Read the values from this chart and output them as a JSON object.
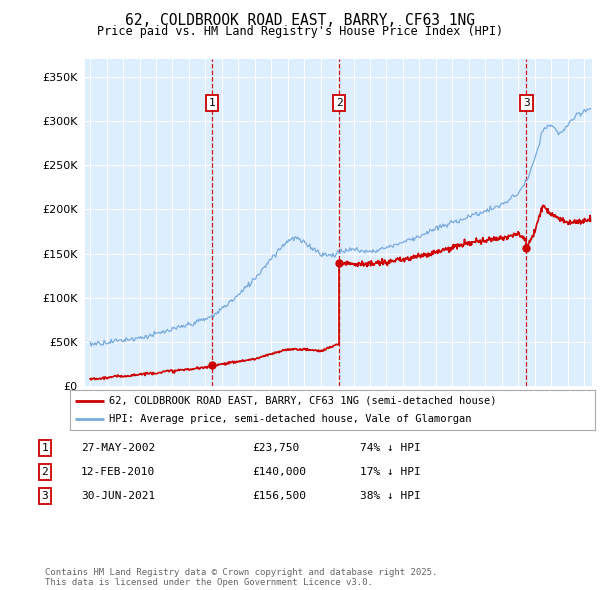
{
  "title": "62, COLDBROOK ROAD EAST, BARRY, CF63 1NG",
  "subtitle": "Price paid vs. HM Land Registry's House Price Index (HPI)",
  "ylim": [
    0,
    370000
  ],
  "yticks": [
    0,
    50000,
    100000,
    150000,
    200000,
    250000,
    300000,
    350000
  ],
  "ytick_labels": [
    "£0",
    "£50K",
    "£100K",
    "£150K",
    "£200K",
    "£250K",
    "£300K",
    "£350K"
  ],
  "xlim_start": 1994.7,
  "xlim_end": 2025.5,
  "background_color": "#ffffff",
  "chart_bg_color": "#ddeeff",
  "grid_color": "#ffffff",
  "line_color_red": "#cc0000",
  "line_color_blue": "#7aaadd",
  "transactions": [
    {
      "num": 1,
      "date_str": "27-MAY-2002",
      "year": 2002.41,
      "price": 23750
    },
    {
      "num": 2,
      "date_str": "12-FEB-2010",
      "year": 2010.12,
      "price": 140000
    },
    {
      "num": 3,
      "date_str": "30-JUN-2021",
      "year": 2021.5,
      "price": 156500
    }
  ],
  "legend_line1": "62, COLDBROOK ROAD EAST, BARRY, CF63 1NG (semi-detached house)",
  "legend_line2": "HPI: Average price, semi-detached house, Vale of Glamorgan",
  "footer": "Contains HM Land Registry data © Crown copyright and database right 2025.\nThis data is licensed under the Open Government Licence v3.0.",
  "table_rows": [
    {
      "num": 1,
      "date": "27-MAY-2002",
      "price": "£23,750",
      "hpi": "74% ↓ HPI"
    },
    {
      "num": 2,
      "date": "12-FEB-2010",
      "price": "£140,000",
      "hpi": "17% ↓ HPI"
    },
    {
      "num": 3,
      "date": "30-JUN-2021",
      "price": "£156,500",
      "hpi": "38% ↓ HPI"
    }
  ]
}
